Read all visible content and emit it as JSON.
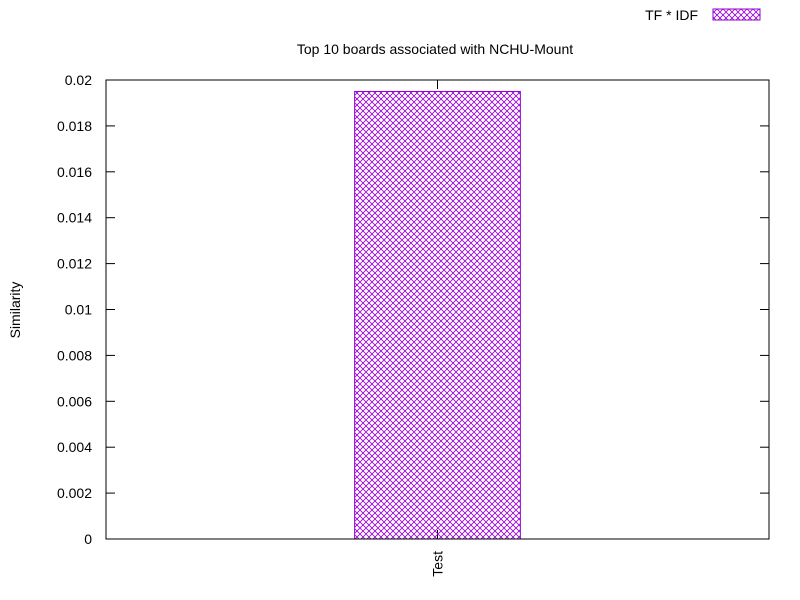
{
  "chart_data": {
    "type": "bar",
    "title": "Top 10 boards associated with NCHU-Mount",
    "xlabel": "",
    "ylabel": "Similarity",
    "categories": [
      "Test"
    ],
    "series": [
      {
        "name": "TF * IDF",
        "values": [
          0.0195
        ]
      }
    ],
    "ylim": [
      0,
      0.02
    ],
    "yticks": [
      "0",
      "0.002",
      "0.004",
      "0.006",
      "0.008",
      "0.01",
      "0.012",
      "0.014",
      "0.016",
      "0.018",
      "0.02"
    ],
    "grid": false,
    "legend_position": "top-right",
    "colors": {
      "bar": "#9400d3",
      "axis": "#000000",
      "background": "#ffffff"
    },
    "bar_pattern": "crosshatch"
  }
}
